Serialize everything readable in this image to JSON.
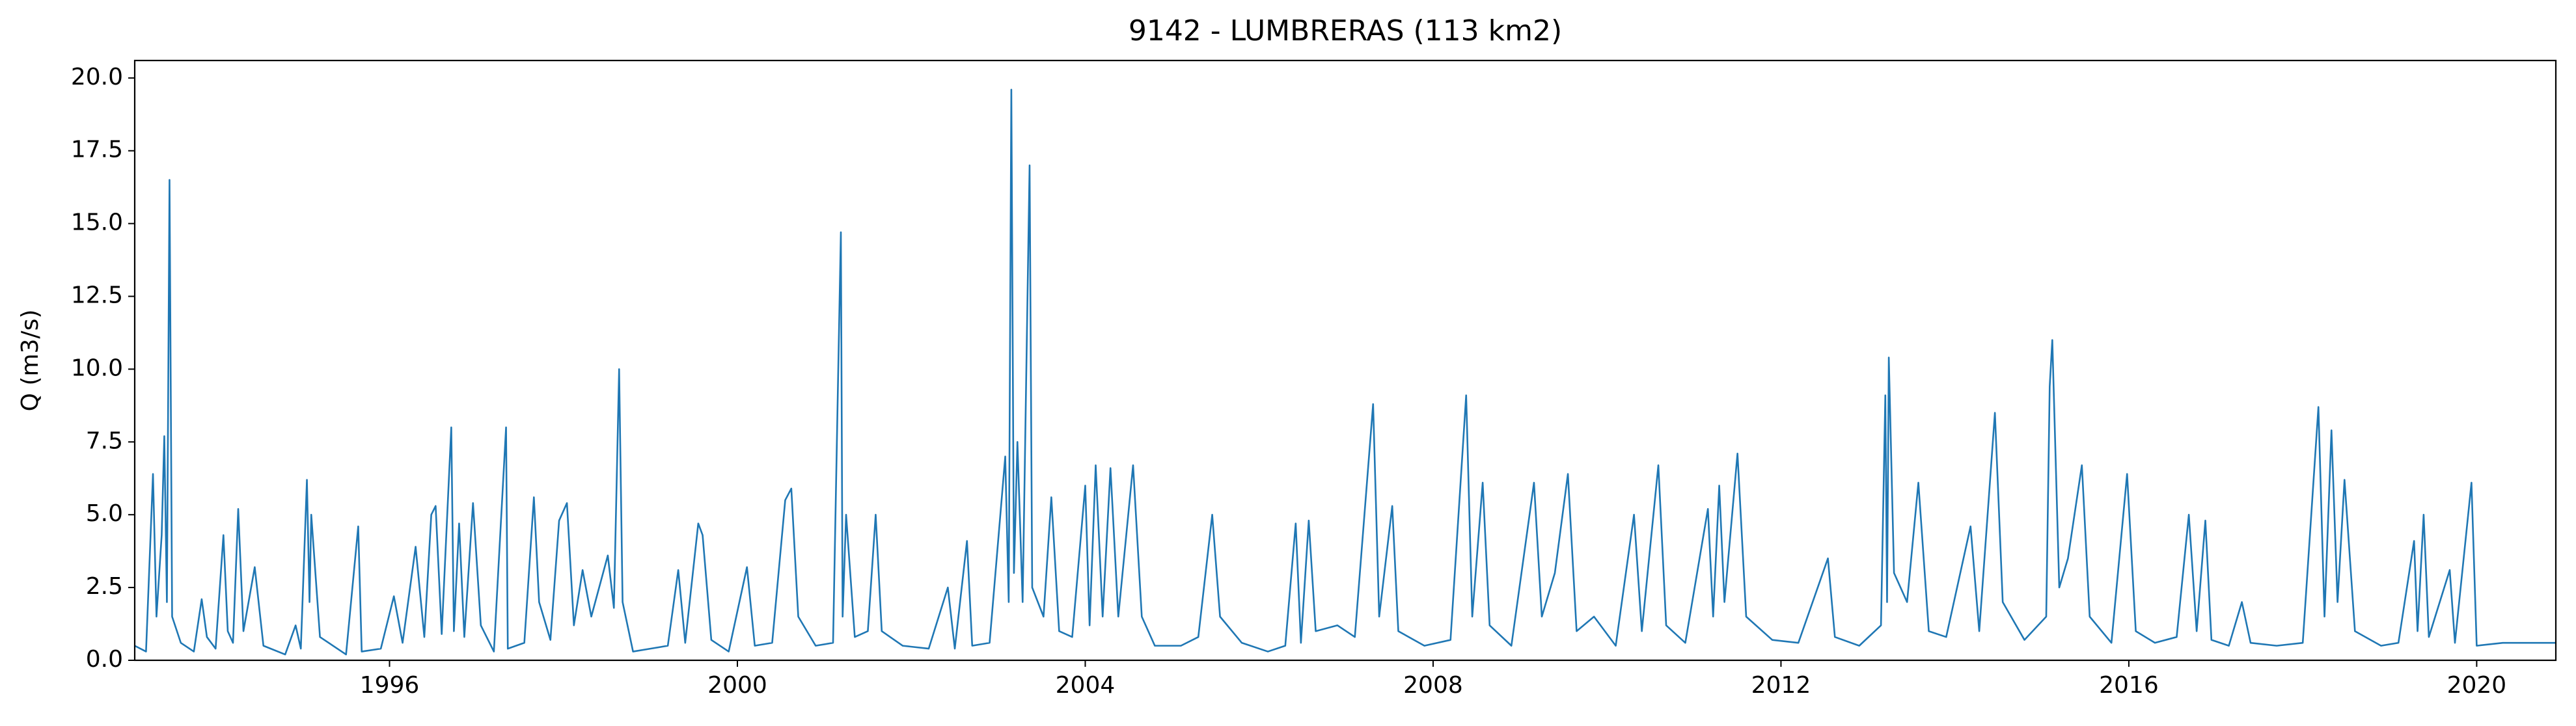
{
  "chart_data": {
    "type": "line",
    "title": "9142 - LUMBRERAS (113 km2)",
    "y_label": "Q (m3/s)",
    "x": [
      1993.07,
      1993.2,
      1993.28,
      1993.32,
      1993.38,
      1993.41,
      1993.44,
      1993.47,
      1993.5,
      1993.6,
      1993.75,
      1993.84,
      1993.9,
      1994.0,
      1994.09,
      1994.14,
      1994.2,
      1994.26,
      1994.32,
      1994.45,
      1994.55,
      1994.8,
      1994.92,
      1994.98,
      1995.05,
      1995.08,
      1995.1,
      1995.2,
      1995.5,
      1995.64,
      1995.68,
      1995.9,
      1996.05,
      1996.15,
      1996.3,
      1996.4,
      1996.48,
      1996.53,
      1996.6,
      1996.71,
      1996.74,
      1996.8,
      1996.86,
      1996.96,
      1997.05,
      1997.2,
      1997.34,
      1997.36,
      1997.55,
      1997.66,
      1997.72,
      1997.85,
      1997.95,
      1998.04,
      1998.12,
      1998.22,
      1998.32,
      1998.51,
      1998.58,
      1998.64,
      1998.68,
      1998.8,
      1999.0,
      1999.2,
      1999.32,
      1999.4,
      1999.55,
      1999.6,
      1999.7,
      1999.9,
      2000.11,
      2000.2,
      2000.4,
      2000.55,
      2000.62,
      2000.7,
      2000.9,
      2001.1,
      2001.19,
      2001.21,
      2001.25,
      2001.35,
      2001.5,
      2001.59,
      2001.66,
      2001.9,
      2002.2,
      2002.42,
      2002.5,
      2002.64,
      2002.7,
      2002.9,
      2003.08,
      2003.12,
      2003.15,
      2003.18,
      2003.22,
      2003.28,
      2003.36,
      2003.39,
      2003.52,
      2003.61,
      2003.7,
      2003.85,
      2004.0,
      2004.05,
      2004.12,
      2004.2,
      2004.29,
      2004.38,
      2004.55,
      2004.65,
      2004.8,
      2005.1,
      2005.3,
      2005.46,
      2005.55,
      2005.8,
      2006.1,
      2006.3,
      2006.42,
      2006.48,
      2006.57,
      2006.65,
      2006.9,
      2007.1,
      2007.31,
      2007.38,
      2007.53,
      2007.6,
      2007.9,
      2008.2,
      2008.38,
      2008.45,
      2008.57,
      2008.65,
      2008.9,
      2009.16,
      2009.25,
      2009.4,
      2009.55,
      2009.65,
      2009.85,
      2010.1,
      2010.31,
      2010.4,
      2010.59,
      2010.68,
      2010.9,
      2011.16,
      2011.22,
      2011.29,
      2011.35,
      2011.5,
      2011.6,
      2011.9,
      2012.2,
      2012.54,
      2012.62,
      2012.9,
      2013.15,
      2013.2,
      2013.22,
      2013.24,
      2013.3,
      2013.45,
      2013.58,
      2013.7,
      2013.9,
      2014.18,
      2014.28,
      2014.46,
      2014.55,
      2014.8,
      2015.05,
      2015.09,
      2015.12,
      2015.2,
      2015.3,
      2015.46,
      2015.55,
      2015.8,
      2015.98,
      2016.08,
      2016.3,
      2016.55,
      2016.69,
      2016.78,
      2016.88,
      2016.95,
      2017.15,
      2017.3,
      2017.4,
      2017.7,
      2018.0,
      2018.18,
      2018.25,
      2018.33,
      2018.4,
      2018.48,
      2018.6,
      2018.9,
      2019.1,
      2019.28,
      2019.32,
      2019.39,
      2019.45,
      2019.69,
      2019.75,
      2019.94,
      2020.0,
      2020.3,
      2020.91
    ],
    "series": [
      {
        "name": "Q",
        "color": "#1f77b4",
        "values": [
          0.5,
          0.3,
          6.4,
          1.5,
          4.3,
          7.7,
          2.0,
          16.5,
          1.5,
          0.6,
          0.3,
          2.1,
          0.8,
          0.4,
          4.3,
          1.0,
          0.6,
          5.2,
          1.0,
          3.2,
          0.5,
          0.2,
          1.2,
          0.4,
          6.2,
          2.0,
          5.0,
          0.8,
          0.2,
          4.6,
          0.3,
          0.4,
          2.2,
          0.6,
          3.9,
          0.8,
          5.0,
          5.3,
          0.9,
          8.0,
          1.0,
          4.7,
          0.8,
          5.4,
          1.2,
          0.3,
          8.0,
          0.4,
          0.6,
          5.6,
          2.0,
          0.7,
          4.8,
          5.4,
          1.2,
          3.1,
          1.5,
          3.6,
          1.8,
          10.0,
          2.0,
          0.3,
          0.4,
          0.5,
          3.1,
          0.6,
          4.7,
          4.3,
          0.7,
          0.3,
          3.2,
          0.5,
          0.6,
          5.5,
          5.9,
          1.5,
          0.5,
          0.6,
          14.7,
          1.5,
          5.0,
          0.8,
          1.0,
          5.0,
          1.0,
          0.5,
          0.4,
          2.5,
          0.4,
          4.1,
          0.5,
          0.6,
          7.0,
          2.0,
          19.6,
          3.0,
          7.5,
          2.0,
          17.0,
          2.5,
          1.5,
          5.6,
          1.0,
          0.8,
          6.0,
          1.2,
          6.7,
          1.5,
          6.6,
          1.5,
          6.7,
          1.5,
          0.5,
          0.5,
          0.8,
          5.0,
          1.5,
          0.6,
          0.3,
          0.5,
          4.7,
          0.6,
          4.8,
          1.0,
          1.2,
          0.8,
          8.8,
          1.5,
          5.3,
          1.0,
          0.5,
          0.7,
          9.1,
          1.5,
          6.1,
          1.2,
          0.5,
          6.1,
          1.5,
          3.0,
          6.4,
          1.0,
          1.5,
          0.5,
          5.0,
          1.0,
          6.7,
          1.2,
          0.6,
          5.2,
          1.5,
          6.0,
          2.0,
          7.1,
          1.5,
          0.7,
          0.6,
          3.5,
          0.8,
          0.5,
          1.2,
          9.1,
          2.0,
          10.4,
          3.0,
          2.0,
          6.1,
          1.0,
          0.8,
          4.6,
          1.0,
          8.5,
          2.0,
          0.7,
          1.5,
          9.4,
          11.0,
          2.5,
          3.5,
          6.7,
          1.5,
          0.6,
          6.4,
          1.0,
          0.6,
          0.8,
          5.0,
          1.0,
          4.8,
          0.7,
          0.5,
          2.0,
          0.6,
          0.5,
          0.6,
          8.7,
          1.5,
          7.9,
          2.0,
          6.2,
          1.0,
          0.5,
          0.6,
          4.1,
          1.0,
          5.0,
          0.8,
          3.1,
          0.6,
          6.1,
          0.5,
          0.6,
          0.6
        ]
      }
    ],
    "xlim": [
      1993.07,
      2020.91
    ],
    "xticks": [
      1996,
      2000,
      2004,
      2008,
      2012,
      2016,
      2020
    ],
    "ylim": [
      0,
      20.6
    ],
    "yticks": [
      {
        "value": 0,
        "label": "0.0"
      },
      2.5,
      {
        "value": 5,
        "label": "5.0"
      },
      7.5,
      {
        "value": 10,
        "label": "10.0"
      },
      12.5,
      {
        "value": 15,
        "label": "15.0"
      },
      17.5,
      {
        "value": 20,
        "label": "20.0"
      }
    ]
  }
}
